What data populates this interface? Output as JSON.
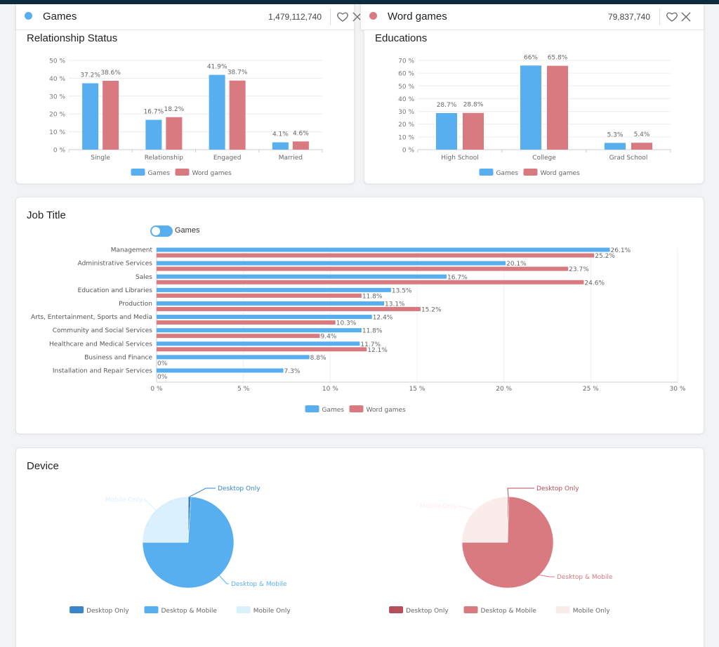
{
  "colors": {
    "games": "#58aff0",
    "word": "#d97a80"
  },
  "headers": [
    {
      "name": "Games",
      "count": "1,479,112,740",
      "color": "#58aff0"
    },
    {
      "name": "Word games",
      "count": "79,837,740",
      "color": "#d97a80"
    }
  ],
  "cards": {
    "relationship": "Relationship Status",
    "educations": "Educations",
    "job": "Job Title",
    "device": "Device"
  },
  "toggle": {
    "label": "Games",
    "on": true
  },
  "chart_data": [
    {
      "type": "bar",
      "title": "Relationship Status",
      "categories": [
        "Single",
        "Relationship",
        "Engaged",
        "Married"
      ],
      "series": [
        {
          "name": "Games",
          "values": [
            37.2,
            16.7,
            41.9,
            4.1
          ]
        },
        {
          "name": "Word games",
          "values": [
            38.6,
            18.2,
            38.7,
            4.6
          ]
        }
      ],
      "ylim": [
        0,
        50
      ],
      "yticks": [
        "0 %",
        "10 %",
        "20 %",
        "30 %",
        "40 %",
        "50 %"
      ],
      "legend": "bottom"
    },
    {
      "type": "bar",
      "title": "Educations",
      "categories": [
        "High School",
        "College",
        "Grad School"
      ],
      "series": [
        {
          "name": "Games",
          "values": [
            28.7,
            66,
            5.3
          ]
        },
        {
          "name": "Word games",
          "values": [
            28.8,
            65.8,
            5.4
          ]
        }
      ],
      "ylim": [
        0,
        70
      ],
      "yticks": [
        "0 %",
        "10 %",
        "20 %",
        "30 %",
        "40 %",
        "50 %",
        "60 %",
        "70 %"
      ],
      "legend": "bottom"
    },
    {
      "type": "bar",
      "orientation": "horizontal",
      "title": "Job Title",
      "categories": [
        "Management",
        "Administrative Services",
        "Sales",
        "Education and Libraries",
        "Production",
        "Arts, Entertainment, Sports and Media",
        "Community and Social Services",
        "Healthcare and Medical Services",
        "Business and Finance",
        "Installation and Repair Services"
      ],
      "series": [
        {
          "name": "Games",
          "values": [
            26.1,
            20.1,
            16.7,
            13.5,
            13.1,
            12.4,
            11.8,
            11.7,
            8.8,
            7.3
          ]
        },
        {
          "name": "Word games",
          "values": [
            25.2,
            23.7,
            24.6,
            11.8,
            15.2,
            10.3,
            9.4,
            12.1,
            0,
            0
          ]
        }
      ],
      "xlim": [
        0,
        30
      ],
      "xticks": [
        "0 %",
        "5 %",
        "10 %",
        "15 %",
        "20 %",
        "25 %",
        "30 %"
      ],
      "legend": "bottom"
    },
    {
      "type": "pie",
      "title": "Device",
      "label": "Games",
      "slices": [
        {
          "name": "Desktop Only",
          "value": 1,
          "color": "#3a86c8"
        },
        {
          "name": "Desktop & Mobile",
          "value": 74,
          "color": "#58aff0"
        },
        {
          "name": "Mobile Only",
          "value": 25,
          "color": "#daf0fc"
        }
      ],
      "legend": "bottom"
    },
    {
      "type": "pie",
      "title": "Device",
      "label": "Word games",
      "slices": [
        {
          "name": "Desktop Only",
          "value": 0.5,
          "color": "#b4505a"
        },
        {
          "name": "Desktop & Mobile",
          "value": 74.5,
          "color": "#d97a80"
        },
        {
          "name": "Mobile Only",
          "value": 25,
          "color": "#fbecec"
        }
      ],
      "legend": "bottom"
    }
  ]
}
